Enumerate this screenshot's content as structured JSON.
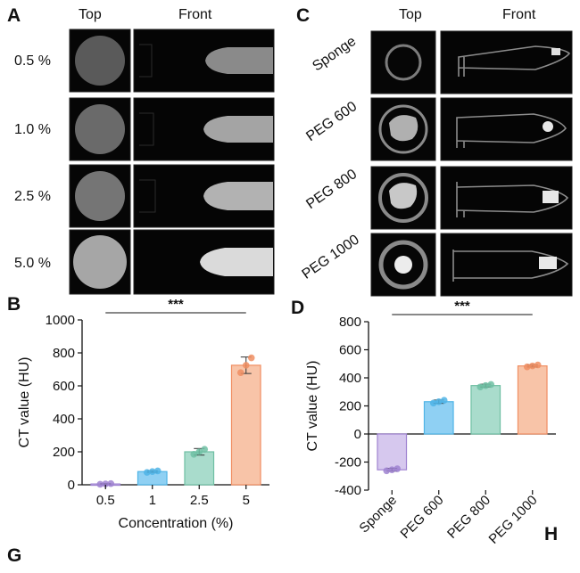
{
  "panels": {
    "A": {
      "letter": "A",
      "col_headers": [
        "Top",
        "Front"
      ],
      "rows": [
        {
          "label": "0.5 %",
          "disk": "#5a5a5a",
          "fill": "#8a8a8a",
          "fill_width": 0.38
        },
        {
          "label": "1.0 %",
          "disk": "#6a6a6a",
          "fill": "#a4a4a4",
          "fill_width": 0.38
        },
        {
          "label": "2.5 %",
          "disk": "#757575",
          "fill": "#b2b2b2",
          "fill_width": 0.38
        },
        {
          "label": "5.0 %",
          "disk": "#a6a6a6",
          "fill": "#dadada",
          "fill_width": 0.4
        }
      ]
    },
    "C": {
      "letter": "C",
      "col_headers": [
        "Top",
        "Front"
      ],
      "rows": [
        {
          "label": "Sponge",
          "content": "ring"
        },
        {
          "label": "PEG 600",
          "content": "blob"
        },
        {
          "label": "PEG 800",
          "content": "blob"
        },
        {
          "label": "PEG 1000",
          "content": "dot"
        }
      ]
    },
    "B_letter": "B",
    "D_letter": "D",
    "G_letter": "G",
    "H_letter": "H"
  },
  "chart_data": [
    {
      "type": "bar",
      "panel": "B",
      "categories": [
        "0.5",
        "1",
        "2.5",
        "5"
      ],
      "values": [
        5,
        80,
        200,
        725
      ],
      "points": [
        [
          3,
          5,
          7
        ],
        [
          75,
          80,
          84
        ],
        [
          185,
          200,
          215
        ],
        [
          680,
          725,
          770
        ]
      ],
      "errors": [
        3,
        5,
        20,
        50
      ],
      "colors": [
        "#c9b8e8",
        "#8fd0f3",
        "#a9dccc",
        "#f8c4a8"
      ],
      "edge_colors": [
        "#9f83d1",
        "#4fb4e6",
        "#6fbfa3",
        "#f08e62"
      ],
      "xlabel": "Concentration (%)",
      "ylabel": "CT value (HU)",
      "ylim": [
        0,
        1000
      ],
      "yticks": [
        0,
        200,
        400,
        600,
        800,
        1000
      ],
      "significance": "***"
    },
    {
      "type": "bar",
      "panel": "D",
      "categories": [
        "Sponge",
        "PEG 600",
        "PEG 800",
        "PEG 1000"
      ],
      "values": [
        -255,
        230,
        345,
        485
      ],
      "points": [
        [
          -262,
          -255,
          -248
        ],
        [
          220,
          230,
          240
        ],
        [
          335,
          345,
          353
        ],
        [
          478,
          485,
          492
        ]
      ],
      "errors": [
        10,
        12,
        10,
        8
      ],
      "colors": [
        "#d6c8ee",
        "#8fd0f3",
        "#a9dccc",
        "#f8c4a8"
      ],
      "edge_colors": [
        "#9f83d1",
        "#4fb4e6",
        "#6fbfa3",
        "#f08e62"
      ],
      "xlabel": "",
      "ylabel": "CT value (HU)",
      "ylim": [
        -400,
        800
      ],
      "yticks": [
        -400,
        -200,
        0,
        200,
        400,
        600,
        800
      ],
      "significance": "***"
    }
  ]
}
